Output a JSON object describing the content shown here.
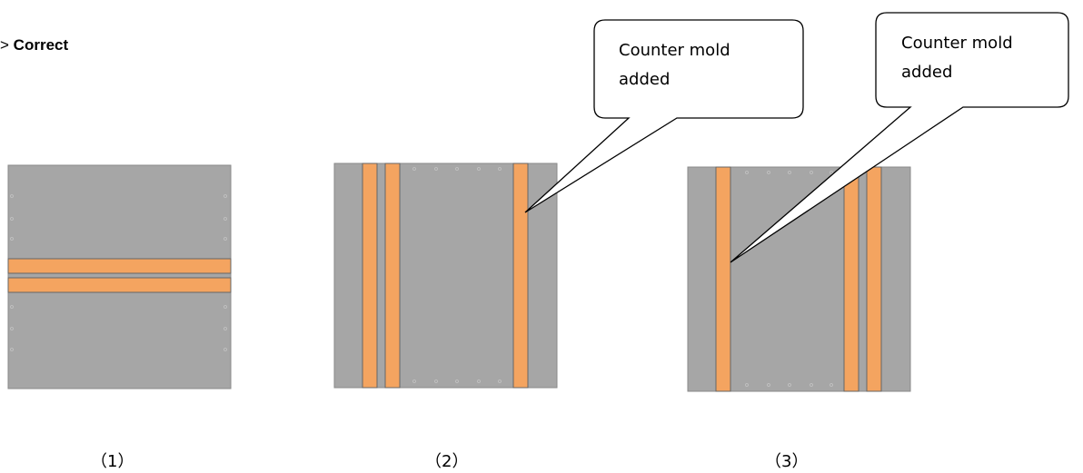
{
  "heading": {
    "arrow": ">",
    "label": "Correct"
  },
  "callouts": [
    {
      "line1": "Counter mold",
      "line2": "added"
    },
    {
      "line1": "Counter mold",
      "line2": "added"
    }
  ],
  "captions": [
    "（1）",
    "（2）",
    "（3）"
  ],
  "colors": {
    "panel": "#a6a6a6",
    "mold_strip": "#f4a460",
    "outline": "#555555",
    "callout_border": "#000000"
  }
}
